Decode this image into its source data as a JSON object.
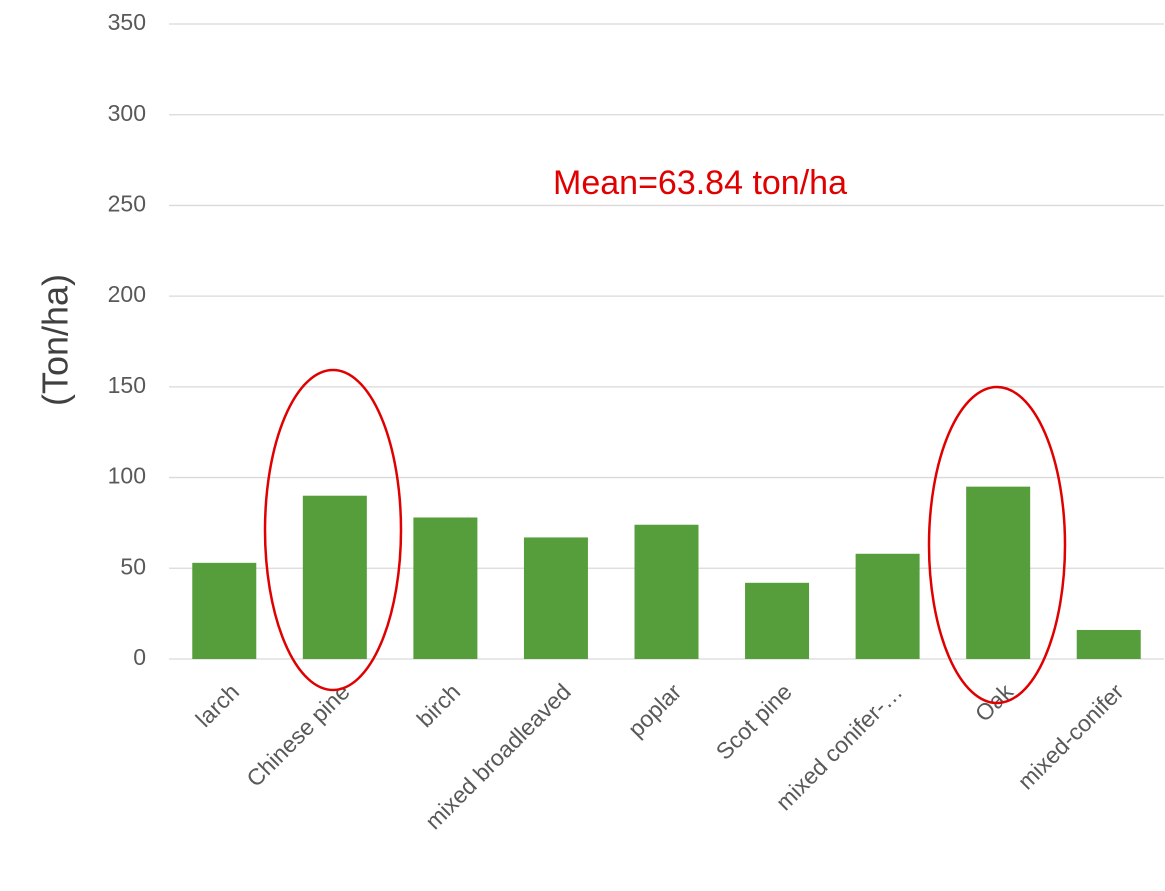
{
  "chart_data": {
    "type": "bar",
    "ylabel": "(Ton/ha)",
    "annotation": "Mean=63.84 ton/ha",
    "categories": [
      "larch",
      "Chinese pine",
      "birch",
      "mixed broadleaved",
      "poplar",
      "Scot pine",
      "mixed conifer-…",
      "Oak",
      "mixed-conifer"
    ],
    "values": [
      53,
      90,
      78,
      67,
      74,
      42,
      58,
      95,
      16
    ],
    "color": "#559e3b",
    "ylim": [
      0,
      350
    ],
    "yticks": [
      0,
      50,
      100,
      150,
      200,
      250,
      300,
      350
    ],
    "grid": true
  }
}
